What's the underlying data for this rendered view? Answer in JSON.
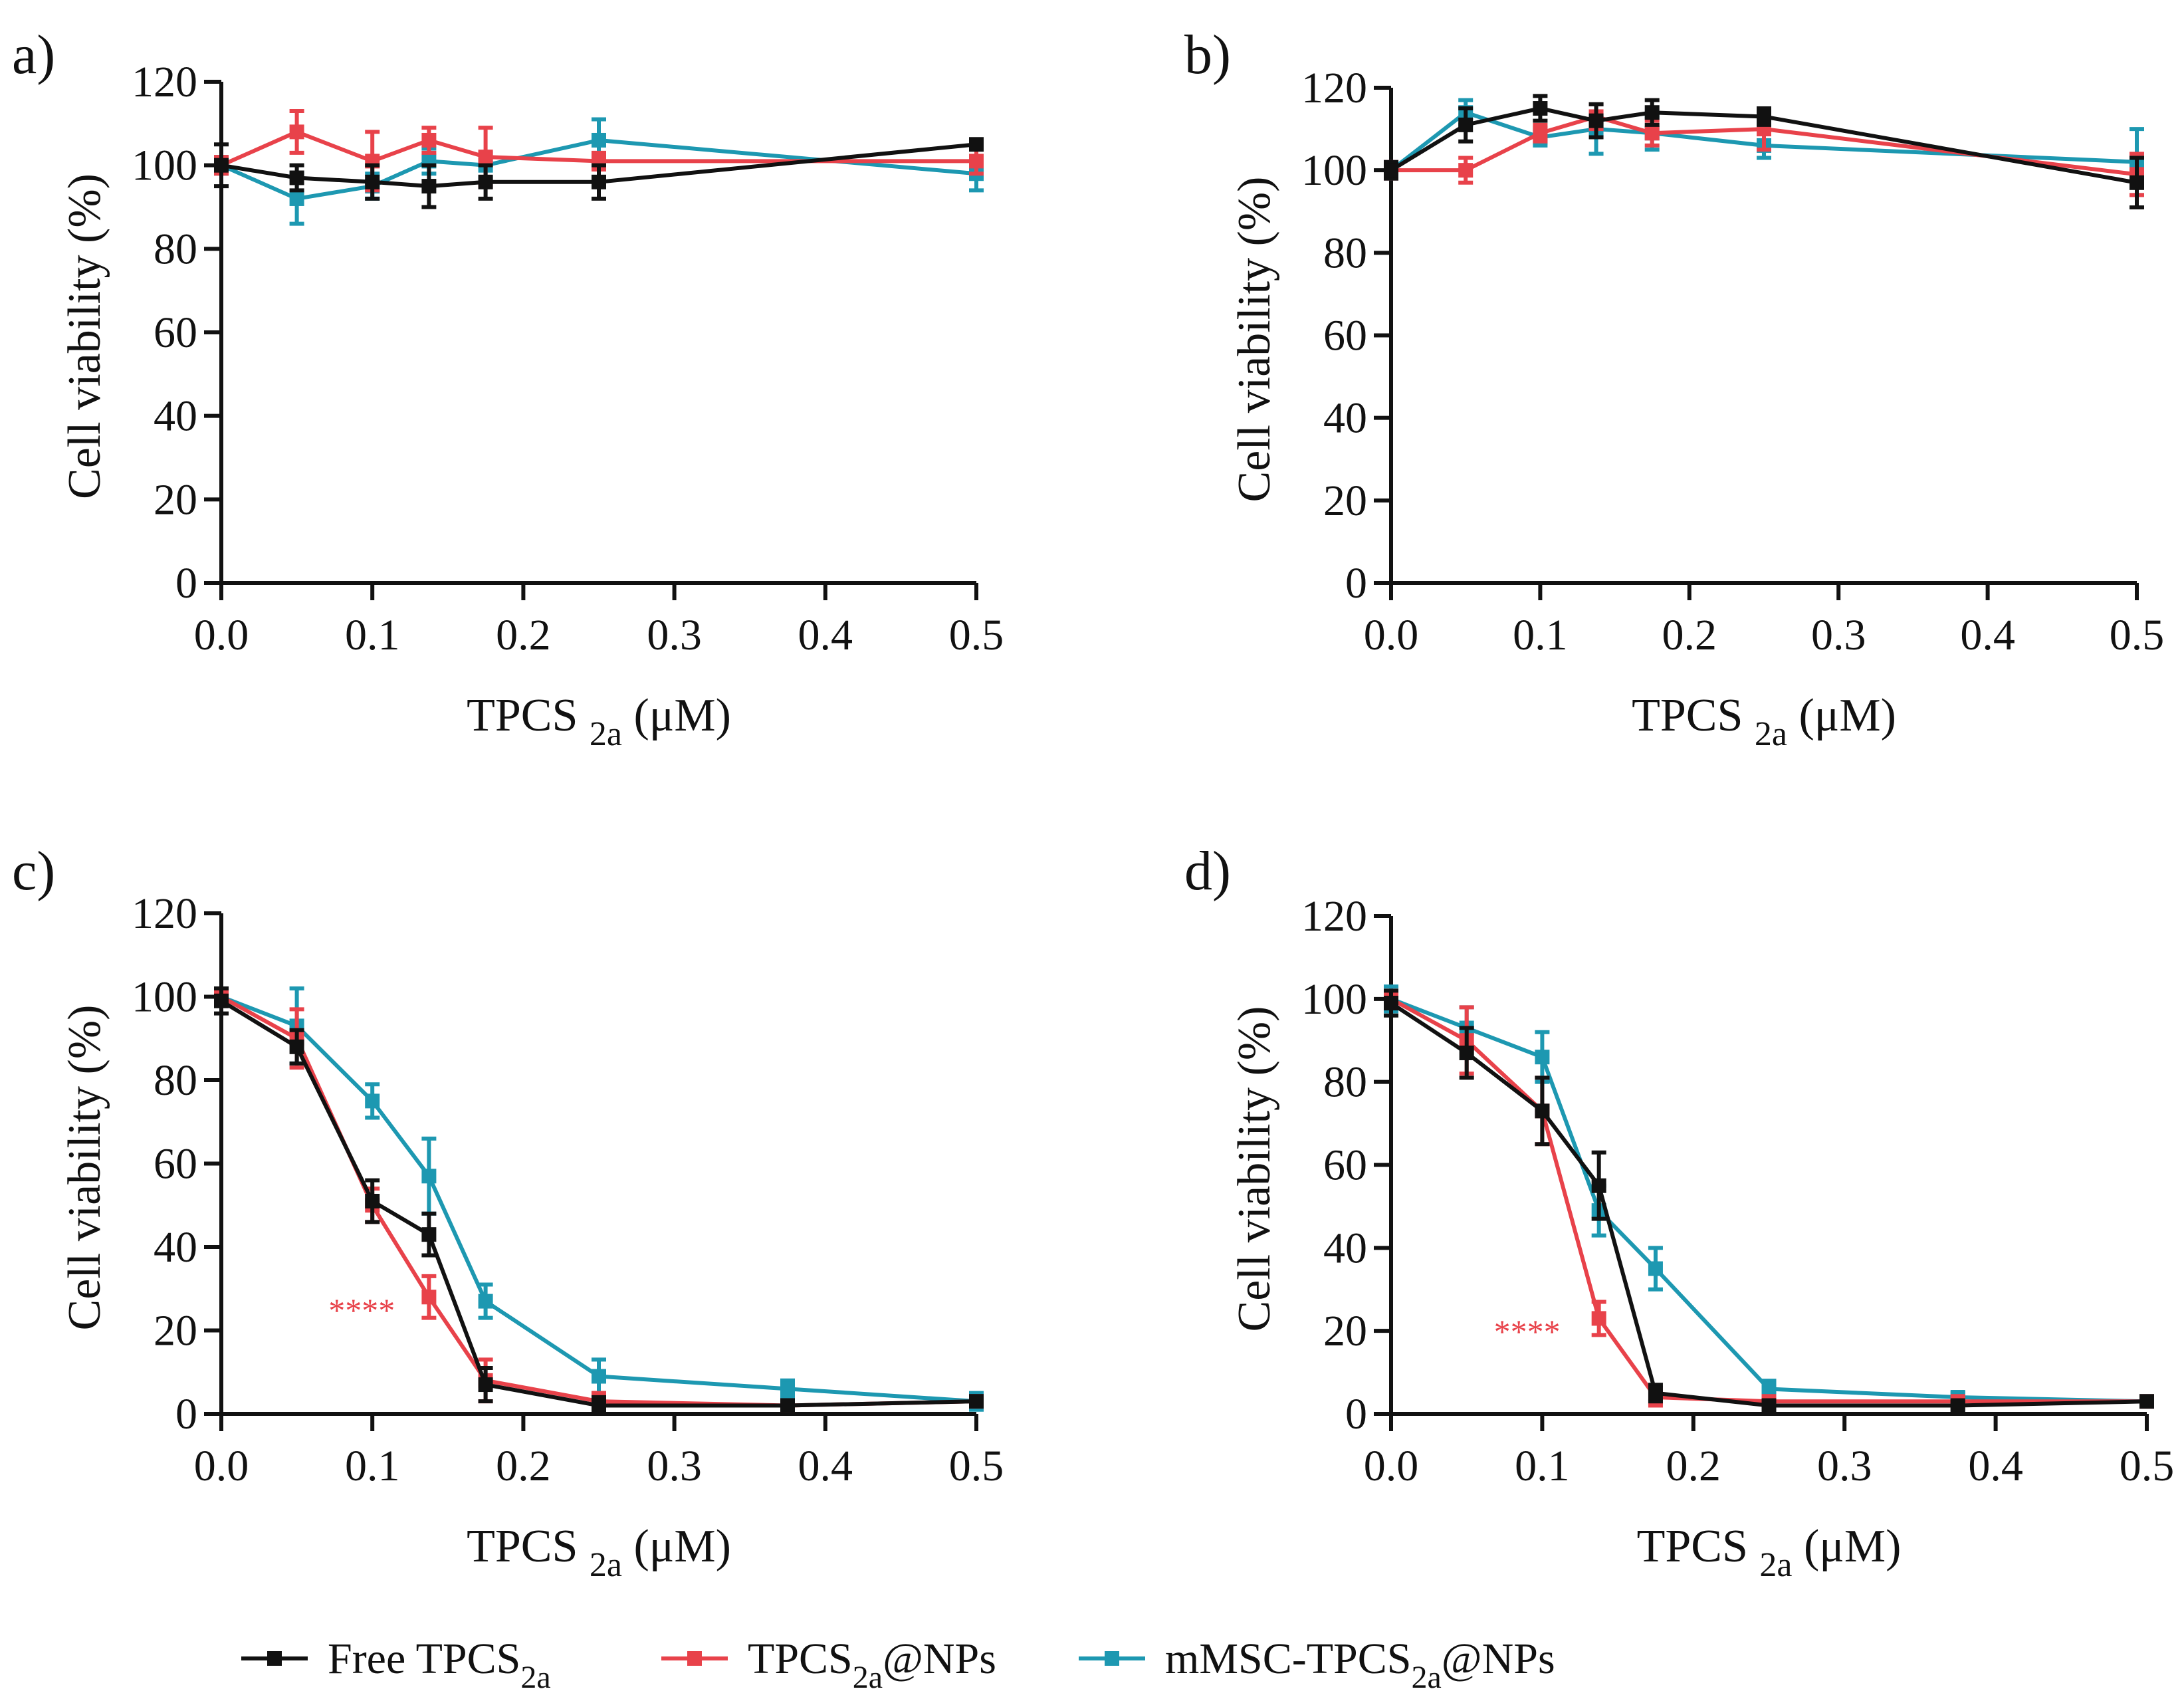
{
  "colors": {
    "Free TPCS2a": "#111111",
    "TPCS2a@NPs": "#e8424a",
    "mMSC-TPCS2a@NPs": "#1d98b1"
  },
  "legend": [
    {
      "name": "Free TPCS2a",
      "base": "Free TPCS",
      "sub": "2a",
      "suffix": ""
    },
    {
      "name": "TPCS2a@NPs",
      "base": "TPCS",
      "sub": "2a",
      "suffix": "@NPs"
    },
    {
      "name": "mMSC-TPCS2a@NPs",
      "base": "mMSC-TPCS",
      "sub": "2a",
      "suffix": "@NPs"
    }
  ],
  "chart_data": [
    {
      "panel": "a)",
      "type": "line",
      "xlabel": {
        "base": "TPCS",
        "sub": "2a",
        "unit": "(μM)"
      },
      "ylabel": "Cell viability (%)",
      "xlim": [
        0,
        0.5
      ],
      "ylim": [
        0,
        120
      ],
      "xticks": [
        "0.0",
        "0.1",
        "0.2",
        "0.3",
        "0.4",
        "0.5"
      ],
      "yticks": [
        "0",
        "20",
        "40",
        "60",
        "80",
        "100",
        "120"
      ],
      "annotation": "",
      "series": [
        {
          "name": "mMSC-TPCS2a@NPs",
          "x": [
            0,
            0.05,
            0.1,
            0.1375,
            0.175,
            0.25,
            0.5
          ],
          "y": [
            100,
            92,
            95,
            101,
            100,
            106,
            98
          ],
          "err": [
            2,
            6,
            3,
            3,
            3,
            5,
            4
          ]
        },
        {
          "name": "TPCS2a@NPs",
          "x": [
            0,
            0.05,
            0.1,
            0.1375,
            0.175,
            0.25,
            0.5
          ],
          "y": [
            100,
            108,
            101,
            106,
            102,
            101,
            101
          ],
          "err": [
            2,
            5,
            7,
            3,
            7,
            2,
            3
          ]
        },
        {
          "name": "Free TPCS2a",
          "x": [
            0,
            0.05,
            0.1,
            0.1375,
            0.175,
            0.25,
            0.5
          ],
          "y": [
            100,
            97,
            96,
            95,
            96,
            96,
            105
          ],
          "err": [
            5,
            3,
            4,
            5,
            4,
            4,
            1
          ]
        }
      ]
    },
    {
      "panel": "b)",
      "type": "line",
      "xlabel": {
        "base": "TPCS",
        "sub": "2a",
        "unit": "(μM)"
      },
      "ylabel": "Cell viability (%)",
      "xlim": [
        0,
        0.5
      ],
      "ylim": [
        0,
        120
      ],
      "xticks": [
        "0.0",
        "0.1",
        "0.2",
        "0.3",
        "0.4",
        "0.5"
      ],
      "yticks": [
        "0",
        "20",
        "40",
        "60",
        "80",
        "100",
        "120"
      ],
      "annotation": "",
      "series": [
        {
          "name": "mMSC-TPCS2a@NPs",
          "x": [
            0,
            0.05,
            0.1,
            0.1375,
            0.175,
            0.25,
            0.5
          ],
          "y": [
            100,
            114,
            108,
            110,
            109,
            106,
            102
          ],
          "err": [
            2,
            3,
            2,
            6,
            4,
            3,
            8
          ]
        },
        {
          "name": "TPCS2a@NPs",
          "x": [
            0,
            0.05,
            0.1,
            0.1375,
            0.175,
            0.25,
            0.5
          ],
          "y": [
            100,
            100,
            109,
            113,
            109,
            110,
            99
          ],
          "err": [
            2,
            3,
            2,
            3,
            3,
            5,
            5
          ]
        },
        {
          "name": "Free TPCS2a",
          "x": [
            0,
            0.05,
            0.1,
            0.1375,
            0.175,
            0.25,
            0.5
          ],
          "y": [
            100,
            111,
            115,
            112,
            114,
            113,
            97
          ],
          "err": [
            2,
            4,
            3,
            4,
            3,
            2,
            6
          ]
        }
      ]
    },
    {
      "panel": "c)",
      "type": "line",
      "xlabel": {
        "base": "TPCS",
        "sub": "2a",
        "unit": "(μM)"
      },
      "ylabel": "Cell viability (%)",
      "xlim": [
        0,
        0.5
      ],
      "ylim": [
        0,
        120
      ],
      "xticks": [
        "0.0",
        "0.1",
        "0.2",
        "0.3",
        "0.4",
        "0.5"
      ],
      "yticks": [
        "0",
        "20",
        "40",
        "60",
        "80",
        "100",
        "120"
      ],
      "annotation": {
        "text": "****",
        "x": 0.093,
        "y": 25
      },
      "series": [
        {
          "name": "mMSC-TPCS2a@NPs",
          "x": [
            0,
            0.05,
            0.1,
            0.1375,
            0.175,
            0.25,
            0.375,
            0.5
          ],
          "y": [
            100,
            93,
            75,
            57,
            27,
            9,
            6,
            3
          ],
          "err": [
            2,
            9,
            4,
            9,
            4,
            4,
            2,
            2
          ]
        },
        {
          "name": "TPCS2a@NPs",
          "x": [
            0,
            0.05,
            0.1,
            0.1375,
            0.175,
            0.25,
            0.375,
            0.5
          ],
          "y": [
            100,
            90,
            50,
            28,
            8,
            3,
            2,
            3
          ],
          "err": [
            2,
            7,
            4,
            5,
            5,
            2,
            1,
            1
          ]
        },
        {
          "name": "Free TPCS2a",
          "x": [
            0,
            0.05,
            0.1,
            0.1375,
            0.175,
            0.25,
            0.375,
            0.5
          ],
          "y": [
            99,
            88,
            51,
            43,
            7,
            2,
            2,
            3
          ],
          "err": [
            3,
            4,
            5,
            5,
            4,
            2,
            1,
            1
          ]
        }
      ]
    },
    {
      "panel": "d)",
      "type": "line",
      "xlabel": {
        "base": "TPCS",
        "sub": "2a",
        "unit": "(μM)"
      },
      "ylabel": "Cell viability (%)",
      "xlim": [
        0,
        0.5
      ],
      "ylim": [
        0,
        120
      ],
      "xticks": [
        "0.0",
        "0.1",
        "0.2",
        "0.3",
        "0.4",
        "0.5"
      ],
      "yticks": [
        "0",
        "20",
        "40",
        "60",
        "80",
        "100",
        "120"
      ],
      "annotation": {
        "text": "****",
        "x": 0.09,
        "y": 20
      },
      "series": [
        {
          "name": "mMSC-TPCS2a@NPs",
          "x": [
            0,
            0.05,
            0.1,
            0.1375,
            0.175,
            0.25,
            0.375,
            0.5
          ],
          "y": [
            100,
            93,
            86,
            49,
            35,
            6,
            4,
            3
          ],
          "err": [
            3,
            5,
            6,
            6,
            5,
            2,
            1,
            1
          ]
        },
        {
          "name": "TPCS2a@NPs",
          "x": [
            0,
            0.05,
            0.1,
            0.1375,
            0.175,
            0.25,
            0.375,
            0.5
          ],
          "y": [
            100,
            90,
            73,
            23,
            4,
            3,
            3,
            3
          ],
          "err": [
            2,
            8,
            8,
            4,
            2,
            1,
            1,
            1
          ]
        },
        {
          "name": "Free TPCS2a",
          "x": [
            0,
            0.05,
            0.1,
            0.1375,
            0.175,
            0.25,
            0.375,
            0.5
          ],
          "y": [
            99,
            87,
            73,
            55,
            5,
            2,
            2,
            3
          ],
          "err": [
            3,
            6,
            8,
            8,
            2,
            1,
            1,
            1
          ]
        }
      ]
    }
  ]
}
